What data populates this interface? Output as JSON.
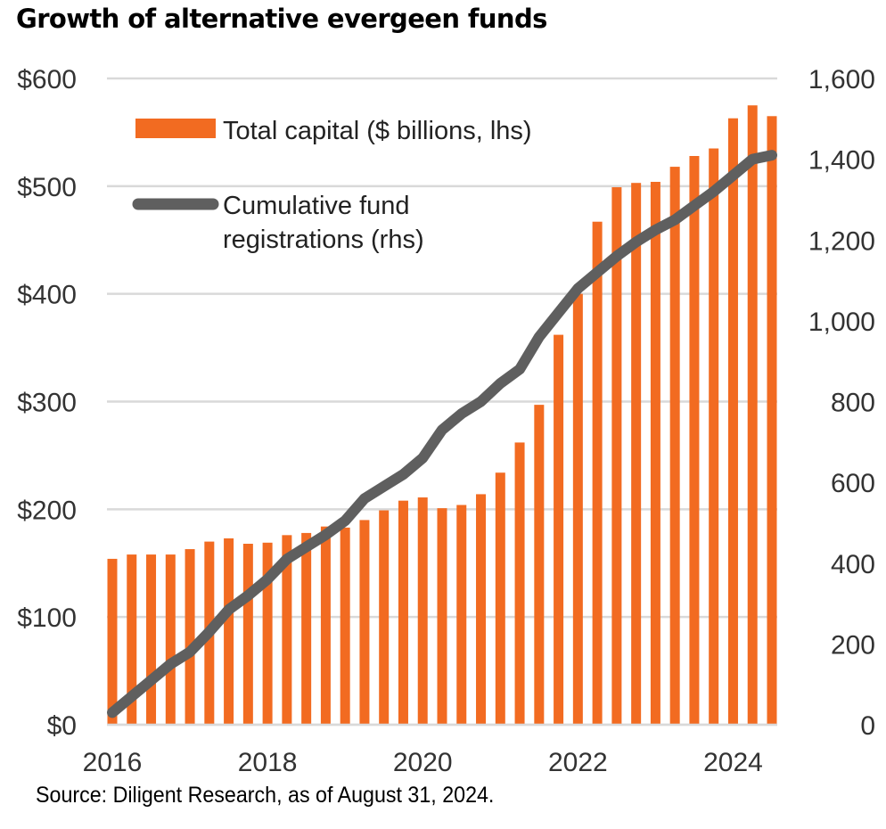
{
  "title": "Growth of alternative evergeen funds",
  "source": "Source: Diligent Research, as of August 31, 2024.",
  "colors": {
    "bars": "#f26b21",
    "line": "#5f5f5f",
    "grid": "#d9d9d9"
  },
  "chart_data": {
    "type": "bar",
    "title": "Growth of alternative evergeen funds",
    "x_ticks": [
      "2016",
      "2018",
      "2020",
      "2022",
      "2024"
    ],
    "y_left_ticks": [
      "$0",
      "$100",
      "$200",
      "$300",
      "$400",
      "$500",
      "$600"
    ],
    "y_right_ticks": [
      "0",
      "200",
      "400",
      "600",
      "800",
      "1,000",
      "1,200",
      "1,400",
      "1,600"
    ],
    "ylim_left": [
      0,
      600
    ],
    "ylim_right": [
      0,
      1600
    ],
    "grid": true,
    "legend_position": "top-left",
    "x_range": [
      2016.0,
      2024.5
    ],
    "series": [
      {
        "name": "Total capital ($ billions, lhs)",
        "type": "bar",
        "axis": "left",
        "x": [
          2016.0,
          2016.25,
          2016.5,
          2016.75,
          2017.0,
          2017.25,
          2017.5,
          2017.75,
          2018.0,
          2018.25,
          2018.5,
          2018.75,
          2019.0,
          2019.25,
          2019.5,
          2019.75,
          2020.0,
          2020.25,
          2020.5,
          2020.75,
          2021.0,
          2021.25,
          2021.5,
          2021.75,
          2022.0,
          2022.25,
          2022.5,
          2022.75,
          2023.0,
          2023.25,
          2023.5,
          2023.75,
          2024.0,
          2024.25,
          2024.5
        ],
        "values": [
          154,
          158,
          158,
          158,
          163,
          170,
          173,
          168,
          169,
          176,
          178,
          184,
          183,
          190,
          199,
          208,
          211,
          201,
          204,
          214,
          234,
          262,
          297,
          362,
          400,
          467,
          499,
          503,
          504,
          518,
          528,
          535,
          563,
          575,
          565
        ]
      },
      {
        "name": "Cumulative fund registrations (rhs)",
        "type": "line",
        "axis": "right",
        "x": [
          2016.0,
          2016.25,
          2016.5,
          2016.75,
          2017.0,
          2017.25,
          2017.5,
          2017.75,
          2018.0,
          2018.25,
          2018.5,
          2018.75,
          2019.0,
          2019.25,
          2019.5,
          2019.75,
          2020.0,
          2020.25,
          2020.5,
          2020.75,
          2021.0,
          2021.25,
          2021.5,
          2021.75,
          2022.0,
          2022.25,
          2022.5,
          2022.75,
          2023.0,
          2023.25,
          2023.5,
          2023.75,
          2024.0,
          2024.25,
          2024.5
        ],
        "values": [
          30,
          70,
          110,
          150,
          180,
          230,
          285,
          320,
          360,
          410,
          440,
          470,
          505,
          560,
          590,
          620,
          660,
          730,
          770,
          800,
          845,
          880,
          960,
          1020,
          1080,
          1120,
          1160,
          1195,
          1225,
          1250,
          1285,
          1320,
          1360,
          1400,
          1410
        ]
      }
    ]
  }
}
